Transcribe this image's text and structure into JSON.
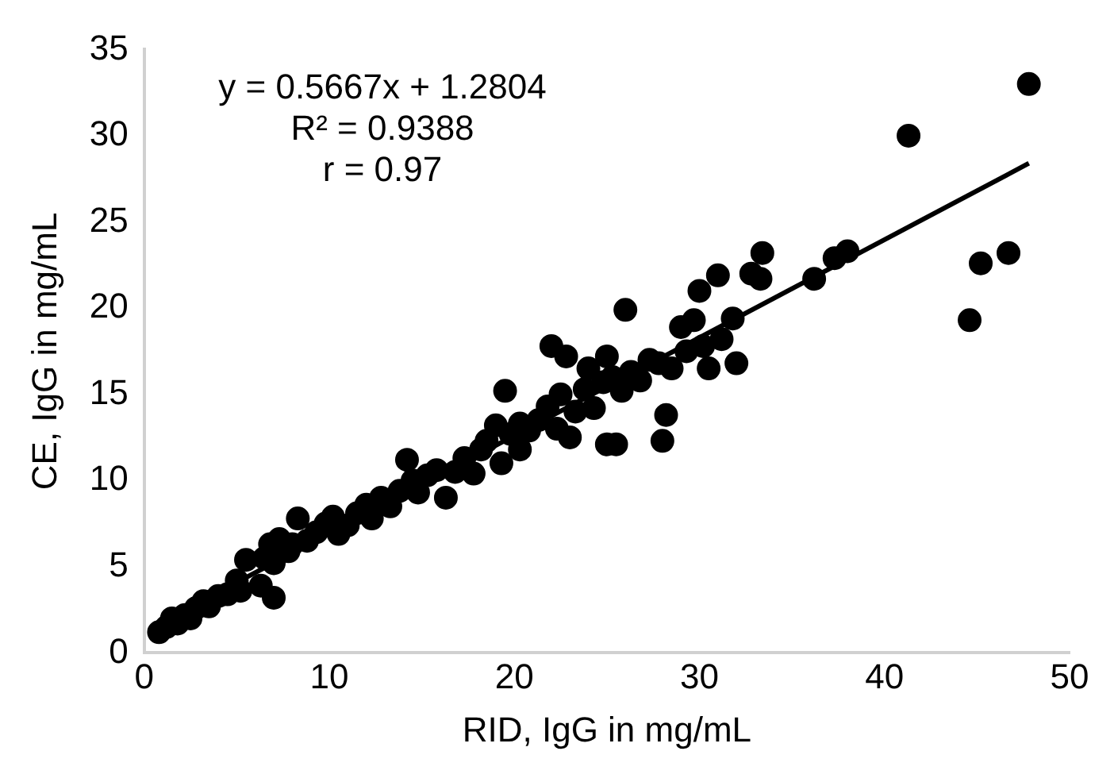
{
  "chart_data": {
    "type": "scatter",
    "xlabel": "RID, IgG in mg/mL",
    "ylabel": "CE, IgG in mg/mL",
    "annotations": [
      "y = 0.5667x + 1.2804",
      "R² = 0.9388",
      "r = 0.97"
    ],
    "xlim": [
      0,
      50
    ],
    "xticks": [
      0,
      10,
      20,
      30,
      40,
      50
    ],
    "ylim": [
      0,
      35
    ],
    "yticks": [
      0,
      5,
      10,
      15,
      20,
      25,
      30,
      35
    ],
    "grid": false,
    "legend": false,
    "marker": "circle",
    "series": [
      {
        "color": "#000000",
        "x": [
          0.8,
          1.2,
          1.5,
          1.8,
          2.2,
          2.5,
          2.8,
          3.2,
          3.5,
          4.0,
          4.5,
          5.0,
          5.2,
          5.5,
          6.3,
          6.5,
          6.8,
          7.0,
          7.0,
          7.3,
          7.8,
          8.0,
          8.3,
          8.8,
          9.3,
          9.8,
          10.2,
          10.5,
          11.0,
          11.5,
          12.0,
          12.3,
          12.8,
          13.3,
          13.8,
          14.2,
          14.5,
          14.8,
          15.3,
          15.8,
          16.3,
          16.8,
          17.3,
          17.8,
          18.2,
          18.5,
          19.0,
          19.3,
          19.5,
          19.8,
          20.3,
          20.3,
          20.8,
          21.3,
          21.8,
          22.0,
          22.3,
          22.5,
          22.8,
          23.0,
          23.3,
          23.8,
          24.0,
          24.3,
          24.8,
          25.0,
          25.0,
          25.5,
          25.3,
          25.8,
          26.0,
          26.3,
          26.8,
          27.3,
          27.8,
          28.0,
          28.2,
          28.5,
          29.0,
          29.3,
          29.7,
          30.0,
          30.2,
          30.5,
          31.0,
          31.2,
          31.8,
          32.0,
          32.8,
          33.3,
          33.4,
          36.2,
          37.3,
          38.0,
          41.3,
          44.6,
          45.2,
          46.7,
          47.8
        ],
        "values": [
          1.2,
          1.5,
          2.0,
          1.7,
          2.2,
          2.0,
          2.6,
          3.0,
          2.7,
          3.3,
          3.4,
          4.2,
          3.6,
          5.4,
          3.9,
          5.5,
          6.3,
          5.2,
          3.2,
          6.6,
          5.9,
          6.3,
          7.8,
          6.5,
          7.0,
          7.5,
          7.9,
          6.9,
          7.4,
          8.1,
          8.6,
          7.8,
          9.0,
          8.5,
          9.4,
          11.2,
          10.0,
          9.3,
          10.3,
          10.6,
          9.0,
          10.5,
          11.3,
          10.4,
          11.8,
          12.3,
          13.2,
          11.0,
          15.2,
          12.7,
          13.3,
          11.8,
          12.9,
          13.5,
          14.3,
          17.8,
          13.0,
          15.0,
          17.2,
          12.5,
          14.0,
          15.3,
          16.5,
          14.2,
          15.7,
          17.2,
          12.1,
          12.1,
          16.0,
          15.2,
          19.9,
          16.3,
          15.8,
          17.0,
          16.8,
          12.3,
          13.8,
          16.5,
          18.9,
          17.5,
          19.3,
          21.0,
          17.8,
          16.5,
          21.9,
          18.2,
          19.4,
          16.8,
          22.0,
          21.7,
          23.2,
          21.7,
          22.9,
          23.3,
          30.0,
          19.3,
          22.6,
          23.2,
          33.0
        ]
      },
      {
        "type": "line",
        "color": "#000000",
        "marker": "none",
        "line_style": "solid",
        "x": [
          0.8,
          47.8
        ],
        "values": [
          1.7,
          28.4
        ]
      }
    ]
  }
}
